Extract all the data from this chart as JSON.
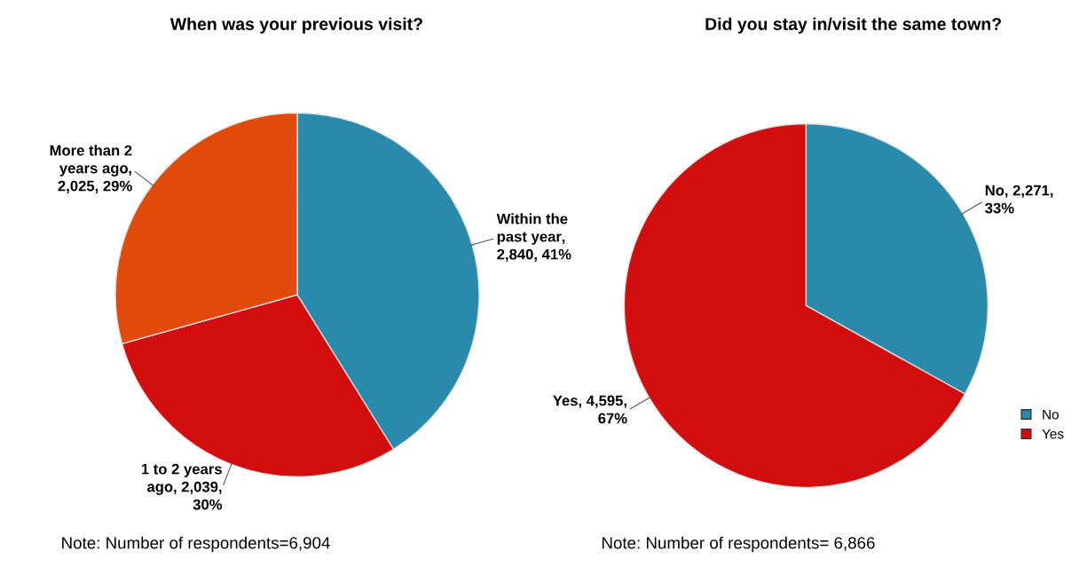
{
  "chart_data": [
    {
      "type": "pie",
      "title": "When was your previous visit?",
      "categories": [
        "Within the past year",
        "1 to 2 years ago",
        "More than 2 years ago"
      ],
      "values": [
        2840,
        2039,
        2025
      ],
      "colors": [
        "#2a8aab",
        "#d10d0d",
        "#e04a0a"
      ],
      "value_labels": [
        ", 2,840, 41%",
        ", 2,039, 30%",
        ", 2,025, 29%"
      ],
      "legend": false,
      "annotations": [
        "Note: Number of respondents=6,904"
      ]
    },
    {
      "type": "pie",
      "title": "Did you stay in/visit the same town?",
      "categories": [
        "No",
        "Yes"
      ],
      "values": [
        2271,
        4595
      ],
      "colors": [
        "#2a8aab",
        "#d10d0d"
      ],
      "value_labels": [
        ", 2,271, 33%",
        ", 4,595, 67%"
      ],
      "legend": "bottom right",
      "annotations": [
        "Note: Number of respondents= 6,866"
      ]
    }
  ]
}
